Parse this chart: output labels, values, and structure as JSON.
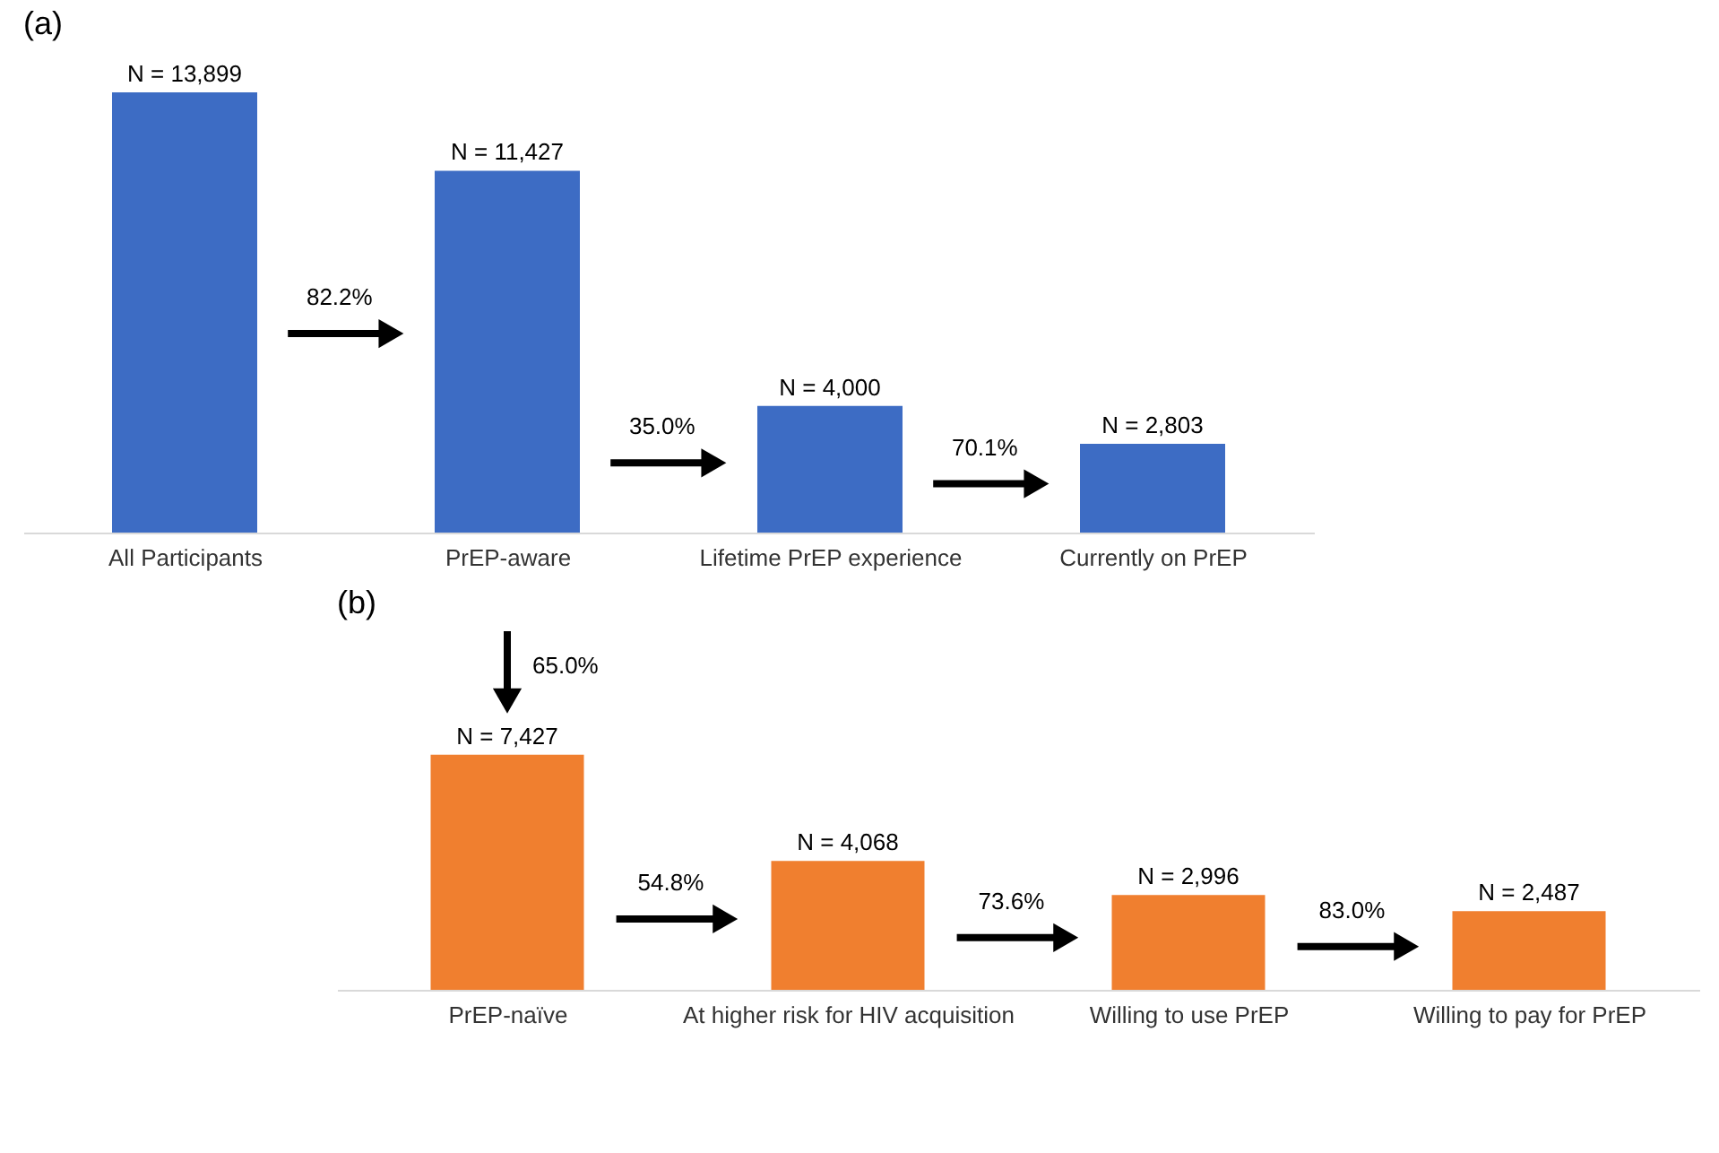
{
  "chart_data": [
    {
      "type": "bar",
      "title": "(a)",
      "categories": [
        "All Participants",
        "PrEP-aware",
        "Lifetime PrEP experience",
        "Currently on PrEP"
      ],
      "values": [
        13899,
        11427,
        4000,
        2803
      ],
      "value_labels": [
        "N = 13,899",
        "N = 11,427",
        "N = 4,000",
        "N = 2,803"
      ],
      "color": "#3d6cc4",
      "annotations": [
        "82.2%",
        "35.0%",
        "70.1%"
      ]
    },
    {
      "type": "bar",
      "title": "(b)",
      "categories": [
        "PrEP-naïve",
        "At higher risk for HIV acquisition",
        "Willing to use PrEP",
        "Willing to pay for PrEP"
      ],
      "values": [
        7427,
        4068,
        2996,
        2487
      ],
      "value_labels": [
        "N = 7,427",
        "N = 4,068",
        "N = 2,996",
        "N = 2,487"
      ],
      "color": "#f07f2f",
      "annotations": [
        "65.0%",
        "54.8%",
        "73.6%",
        "83.0%"
      ]
    }
  ]
}
